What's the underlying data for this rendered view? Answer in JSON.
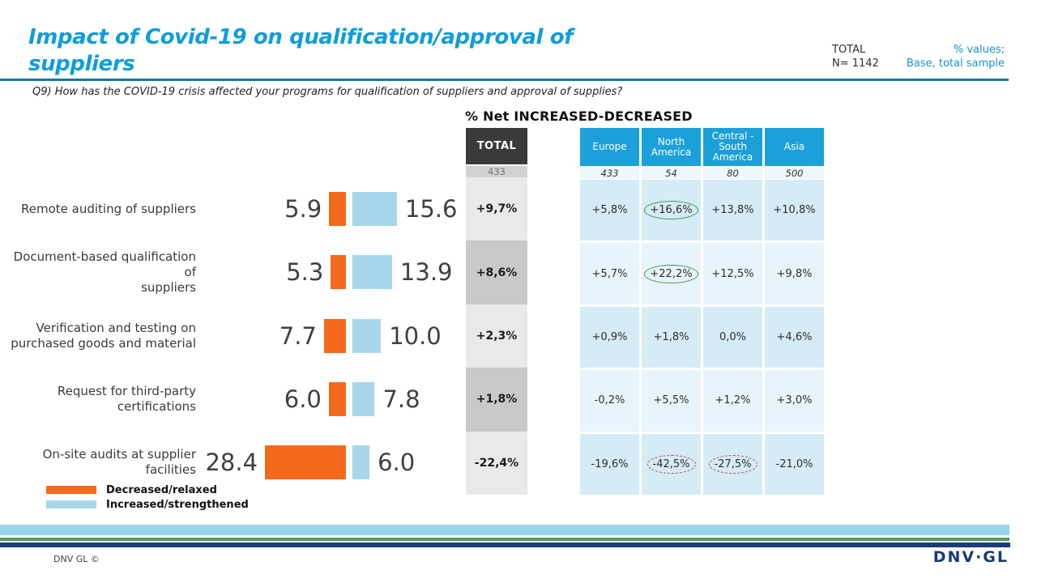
{
  "header": {
    "title": "Impact of Covid-19 on qualification/approval of\nsuppliers",
    "total_label": "TOTAL",
    "total_n": "N= 1142",
    "note_line1": "% values;",
    "note_line2": "Base, total sample"
  },
  "question": "Q9) How has the COVID-19  crisis affected your programs for qualification of suppliers and approval of supplies?",
  "section_title": "% Net  INCREASED-DECREASED",
  "colors": {
    "accent_blue": "#0F9DDB",
    "note_blue": "#1791CC",
    "rule_blue": "#15779F",
    "table_header_blue": "#1BA0DA",
    "dark_header_gray": "#3A3A3A",
    "orange": "#F4691B",
    "light_blue_bar": "#A8D7EB",
    "green_highlight": "#3F9C3F",
    "red_highlight": "#CC4455",
    "stripe_lightblue": "#99D4EC",
    "stripe_green": "#4E9B58",
    "stripe_navy": "#1E3B7B"
  },
  "chart_data": {
    "type": "bar",
    "subtype": "diverging-horizontal",
    "title": "% Net  INCREASED-DECREASED",
    "categories": [
      "Remote auditing  of suppliers",
      "Document-based qualification  of\nsuppliers",
      "Verification  and  testing on\npurchased goods and  material",
      "Request for third-party\ncertifications",
      "On-site  audits  at supplier\nfacilities"
    ],
    "series": [
      {
        "name": "Decreased/relaxed",
        "color": "#F4691B",
        "values": [
          "5.9",
          "5.3",
          "7.7",
          "6.0",
          "28.4"
        ]
      },
      {
        "name": "Increased/strengthened",
        "color": "#A8D7EB",
        "values": [
          "15.6",
          "13.9",
          "10.0",
          "7.8",
          "6.0"
        ]
      }
    ],
    "total_column": {
      "header": "TOTAL",
      "base": "433",
      "values": [
        "+9,7%",
        "+8,6%",
        "+2,3%",
        "+1,8%",
        "-22,4%"
      ]
    },
    "regional_table": {
      "columns": [
        "Europe",
        "North America",
        "Central - South America",
        "Asia"
      ],
      "base": [
        "433",
        "54",
        "80",
        "500"
      ],
      "rows": [
        [
          "+5,8%",
          "+16,6%",
          "+13,8%",
          "+10,8%"
        ],
        [
          "+5,7%",
          "+22,2%",
          "+12,5%",
          "+9,8%"
        ],
        [
          "+0,9%",
          "+1,8%",
          "0,0%",
          "+4,6%"
        ],
        [
          "-0,2%",
          "+5,5%",
          "+1,2%",
          "+3,0%"
        ],
        [
          "-19,6%",
          "-42,5%",
          "-27,5%",
          "-21,0%"
        ]
      ],
      "marks": [
        {
          "row": 0,
          "col": 1,
          "type": "green-ellipse"
        },
        {
          "row": 1,
          "col": 1,
          "type": "green-ellipse"
        },
        {
          "row": 4,
          "col": 1,
          "type": "red-dashed-ellipse"
        },
        {
          "row": 4,
          "col": 2,
          "type": "red-dashed-ellipse"
        }
      ]
    }
  },
  "legend": {
    "items": [
      {
        "label": "Decreased/relaxed"
      },
      {
        "label": "Increased/strengthened"
      }
    ]
  },
  "footer": {
    "copyright": "DNV GL ©",
    "logo": "DNV·GL"
  }
}
